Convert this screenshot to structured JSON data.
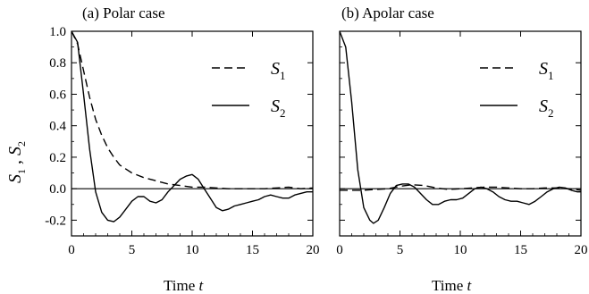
{
  "chart_data": [
    {
      "type": "line",
      "title": "(a) Polar case",
      "xlabel": "Time",
      "xlabel_symbol": "t",
      "ylabel": "S1 , S2",
      "xlim": [
        0,
        20
      ],
      "ylim": [
        -0.3,
        1.0
      ],
      "xticks": [
        "0",
        "5",
        "10",
        "15",
        "20"
      ],
      "yticks": [
        "-0.2",
        "0.0",
        "0.2",
        "0.4",
        "0.6",
        "0.8",
        "1.0"
      ],
      "zero_line": true,
      "legend_position": "right",
      "series": [
        {
          "name": "S1",
          "style": "dashed",
          "x": [
            0,
            0.5,
            1,
            1.5,
            2,
            2.5,
            3,
            3.5,
            4,
            5,
            6,
            7,
            8,
            9,
            10,
            11,
            12,
            13,
            14,
            15,
            16,
            17,
            18,
            19,
            20
          ],
          "y": [
            1.0,
            0.92,
            0.75,
            0.58,
            0.44,
            0.34,
            0.26,
            0.2,
            0.15,
            0.1,
            0.07,
            0.05,
            0.03,
            0.02,
            0.01,
            0.01,
            0.005,
            0.0,
            0.0,
            0.0,
            0.0,
            0.005,
            0.01,
            0.0,
            0.005
          ]
        },
        {
          "name": "S2",
          "style": "solid",
          "x": [
            0,
            0.5,
            1,
            1.5,
            2,
            2.5,
            3,
            3.5,
            4,
            4.5,
            5,
            5.5,
            6,
            6.5,
            7,
            7.5,
            8,
            8.5,
            9,
            9.5,
            10,
            10.5,
            11,
            11.5,
            12,
            12.5,
            13,
            13.5,
            14,
            14.5,
            15,
            15.5,
            16,
            16.5,
            17,
            17.5,
            18,
            18.5,
            19,
            19.5,
            20
          ],
          "y": [
            1.0,
            0.93,
            0.6,
            0.25,
            -0.02,
            -0.15,
            -0.2,
            -0.21,
            -0.18,
            -0.13,
            -0.08,
            -0.05,
            -0.05,
            -0.08,
            -0.09,
            -0.07,
            -0.02,
            0.02,
            0.06,
            0.08,
            0.09,
            0.06,
            0.0,
            -0.06,
            -0.12,
            -0.14,
            -0.13,
            -0.11,
            -0.1,
            -0.09,
            -0.08,
            -0.07,
            -0.05,
            -0.04,
            -0.05,
            -0.06,
            -0.06,
            -0.04,
            -0.03,
            -0.02,
            -0.02
          ]
        }
      ]
    },
    {
      "type": "line",
      "title": "(b) Apolar case",
      "xlabel": "Time",
      "xlabel_symbol": "t",
      "xlim": [
        0,
        20
      ],
      "ylim": [
        -0.3,
        1.0
      ],
      "xticks": [
        "0",
        "5",
        "10",
        "15",
        "20"
      ],
      "zero_line": true,
      "legend_position": "right",
      "series": [
        {
          "name": "S1",
          "style": "dashed",
          "x": [
            0,
            1,
            2,
            3,
            4,
            5,
            6,
            7,
            8,
            9,
            10,
            11,
            12,
            13,
            14,
            15,
            16,
            17,
            18,
            19,
            20
          ],
          "y": [
            -0.01,
            -0.01,
            -0.01,
            -0.005,
            0.0,
            0.015,
            0.025,
            0.02,
            0.005,
            -0.005,
            0.0,
            0.005,
            0.01,
            0.01,
            0.005,
            0.0,
            0.0,
            0.005,
            0.005,
            0.0,
            -0.01
          ]
        },
        {
          "name": "S2",
          "style": "solid",
          "x": [
            0,
            0.5,
            1,
            1.5,
            2,
            2.5,
            2.8,
            3.2,
            3.7,
            4.2,
            4.7,
            5.2,
            5.7,
            6.2,
            6.7,
            7.2,
            7.7,
            8.2,
            8.7,
            9.2,
            9.7,
            10.2,
            10.7,
            11.2,
            11.7,
            12.2,
            12.7,
            13.2,
            13.7,
            14.2,
            14.7,
            15.2,
            15.7,
            16.2,
            16.7,
            17.2,
            17.7,
            18.2,
            18.7,
            19.2,
            19.7,
            20
          ],
          "y": [
            1.0,
            0.9,
            0.55,
            0.12,
            -0.12,
            -0.2,
            -0.22,
            -0.2,
            -0.12,
            -0.03,
            0.02,
            0.03,
            0.03,
            0.01,
            -0.03,
            -0.07,
            -0.1,
            -0.1,
            -0.08,
            -0.07,
            -0.07,
            -0.06,
            -0.03,
            0.0,
            0.01,
            0.0,
            -0.02,
            -0.05,
            -0.07,
            -0.08,
            -0.08,
            -0.09,
            -0.1,
            -0.08,
            -0.05,
            -0.02,
            0.0,
            0.01,
            0.005,
            -0.01,
            -0.02,
            -0.02
          ]
        }
      ]
    }
  ]
}
